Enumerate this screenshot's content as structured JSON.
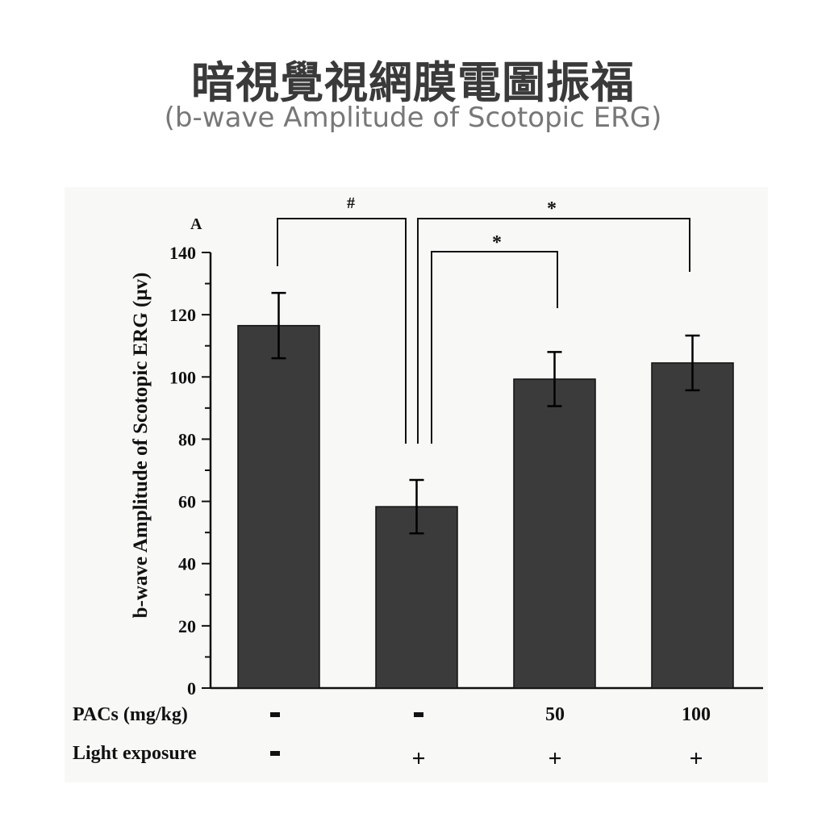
{
  "header": {
    "title_zh": "暗視覺視網膜電圖振福",
    "title_en": "(b-wave Amplitude of Scotopic ERG)"
  },
  "figure": {
    "panel_label": "A",
    "ylabel": "b-wave Amplitude of Scotopic ERG (μv)",
    "yticks": [
      "0",
      "20",
      "40",
      "60",
      "80",
      "100",
      "120",
      "140"
    ],
    "row_labels": {
      "pacs": "PACs (mg/kg)",
      "light": "Light exposure"
    },
    "pacs_values": [
      "-",
      "-",
      "50",
      "100"
    ],
    "light_values": [
      "-",
      "+",
      "+",
      "+"
    ],
    "sig_marks": {
      "hash": "#",
      "star1": "*",
      "star2": "*"
    }
  },
  "colors": {
    "bar": "#3b3b3b",
    "axis": "#111111",
    "background": "#f8f8f6"
  },
  "chart_data": {
    "type": "bar",
    "title": "暗視覺視網膜電圖振福 (b-wave Amplitude of Scotopic ERG)",
    "xlabel": "",
    "ylabel": "b-wave Amplitude of Scotopic ERG (μv)",
    "ylim": [
      0,
      140
    ],
    "categories": [
      "PACs - / Light -",
      "PACs - / Light +",
      "PACs 50 / Light +",
      "PACs 100 / Light +"
    ],
    "values": [
      116.5,
      58.3,
      99.3,
      104.5
    ],
    "error": [
      10.5,
      8.6,
      8.7,
      8.8
    ],
    "annotations": [
      {
        "from": 0,
        "to": 1,
        "mark": "#"
      },
      {
        "from": 1,
        "to": 2,
        "mark": "*"
      },
      {
        "from": 1,
        "to": 3,
        "mark": "*"
      }
    ],
    "grid": false,
    "legend": null
  }
}
